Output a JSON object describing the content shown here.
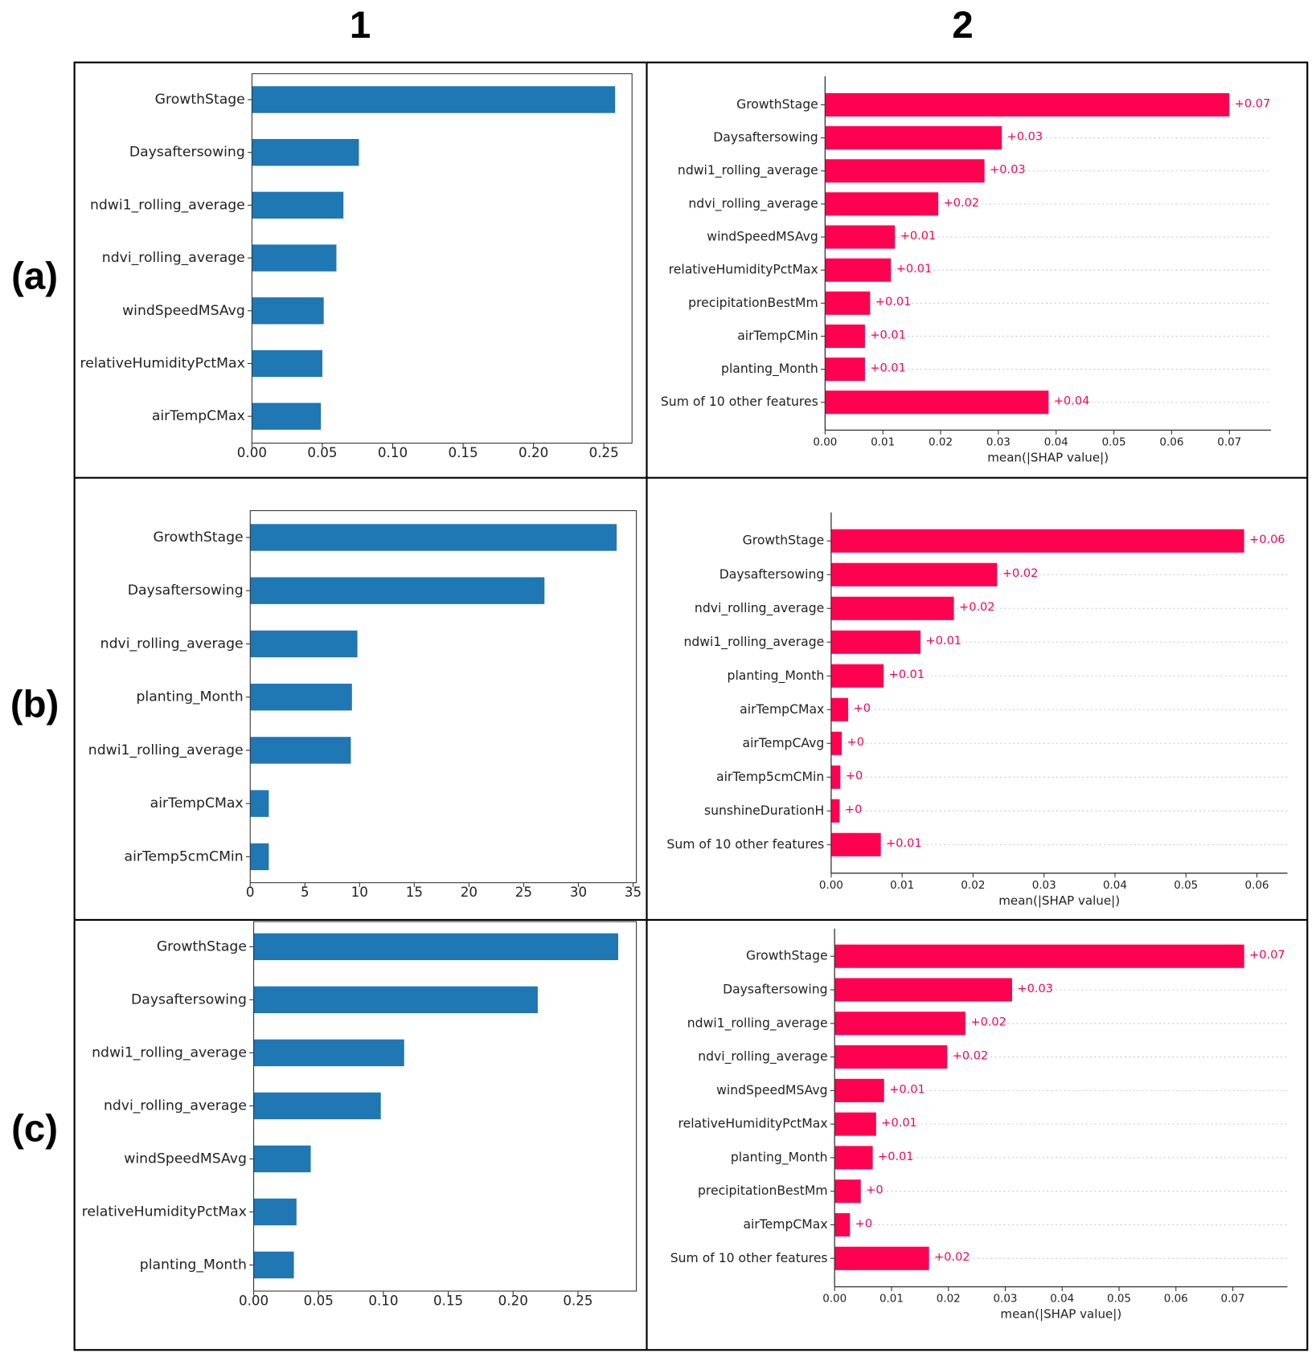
{
  "column_labels": [
    "1",
    "2"
  ],
  "row_labels": [
    "(a)",
    "(b)",
    "(c)"
  ],
  "chart_data": [
    {
      "type": "bar",
      "color": "#1f77b4",
      "grid": false,
      "categories": [
        "GrowthStage",
        "Daysaftersowing",
        "ndwi1_rolling_average",
        "ndvi_rolling_average",
        "windSpeedMSAvg",
        "relativeHumidityPctMax",
        "airTempCMax"
      ],
      "values": [
        0.258,
        0.076,
        0.065,
        0.06,
        0.051,
        0.05,
        0.049
      ],
      "xlim": [
        0,
        0.27
      ],
      "xticks": [
        {
          "value": 0,
          "label": "0.00"
        },
        0.05,
        {
          "value": 0.1,
          "label": "0.10"
        },
        0.15,
        {
          "value": 0.2,
          "label": "0.20"
        },
        0.25
      ]
    },
    {
      "type": "bar",
      "color": "#ff0051",
      "grid": true,
      "xlabel": "mean(|SHAP value|)",
      "categories": [
        "GrowthStage",
        "Daysaftersowing",
        "ndwi1_rolling_average",
        "ndvi_rolling_average",
        "windSpeedMSAvg",
        "relativeHumidityPctMax",
        "precipitationBestMm",
        "airTempCMin",
        "planting_Month",
        "Sum of 10 other features"
      ],
      "values": [
        0.07,
        0.0306,
        0.0276,
        0.0196,
        0.0121,
        0.0114,
        0.0078,
        0.0069,
        0.0069,
        0.0387
      ],
      "value_labels": [
        "+0.07",
        "+0.03",
        "+0.03",
        "+0.02",
        "+0.01",
        "+0.01",
        "+0.01",
        "+0.01",
        "+0.01",
        "+0.04"
      ],
      "xlim": [
        0,
        0.0772
      ],
      "xticks": [
        {
          "value": 0,
          "label": "0.00"
        },
        0.01,
        0.02,
        0.03,
        0.04,
        0.05,
        0.06,
        0.07
      ]
    },
    {
      "type": "bar",
      "color": "#1f77b4",
      "grid": false,
      "categories": [
        "GrowthStage",
        "Daysaftersowing",
        "ndvi_rolling_average",
        "planting_Month",
        "ndwi1_rolling_average",
        "airTempCMax",
        "airTemp5cmCMin"
      ],
      "values": [
        33.5,
        26.9,
        9.8,
        9.3,
        9.2,
        1.7,
        1.7
      ],
      "xlim": [
        0,
        35.3
      ],
      "xticks": [
        0,
        5,
        10,
        15,
        20,
        25,
        30,
        35
      ]
    },
    {
      "type": "bar",
      "color": "#ff0051",
      "grid": true,
      "xlabel": "mean(|SHAP value|)",
      "categories": [
        "GrowthStage",
        "Daysaftersowing",
        "ndvi_rolling_average",
        "ndwi1_rolling_average",
        "planting_Month",
        "airTempCMax",
        "airTempCAvg",
        "airTemp5cmCMin",
        "sunshineDurationH",
        "Sum of 10 other features"
      ],
      "values": [
        0.0582,
        0.0234,
        0.0173,
        0.0126,
        0.0074,
        0.0024,
        0.0015,
        0.0013,
        0.0012,
        0.007
      ],
      "value_labels": [
        "+0.06",
        "+0.02",
        "+0.02",
        "+0.01",
        "+0.01",
        "+0",
        "+0",
        "+0",
        "+0",
        "+0.01"
      ],
      "xlim": [
        0,
        0.0643
      ],
      "xticks": [
        {
          "value": 0,
          "label": "0.00"
        },
        0.01,
        0.02,
        0.03,
        0.04,
        0.05,
        0.06
      ]
    },
    {
      "type": "bar",
      "color": "#1f77b4",
      "grid": false,
      "categories": [
        "GrowthStage",
        "Daysaftersowing",
        "ndwi1_rolling_average",
        "ndvi_rolling_average",
        "windSpeedMSAvg",
        "relativeHumidityPctMax",
        "planting_Month"
      ],
      "values": [
        0.281,
        0.219,
        0.116,
        0.098,
        0.044,
        0.033,
        0.031
      ],
      "xlim": [
        0,
        0.295
      ],
      "xticks": [
        {
          "value": 0,
          "label": "0.00"
        },
        0.05,
        {
          "value": 0.1,
          "label": "0.10"
        },
        0.15,
        {
          "value": 0.2,
          "label": "0.20"
        },
        0.25
      ]
    },
    {
      "type": "bar",
      "color": "#ff0051",
      "grid": true,
      "xlabel": "mean(|SHAP value|)",
      "categories": [
        "GrowthStage",
        "Daysaftersowing",
        "ndwi1_rolling_average",
        "ndvi_rolling_average",
        "windSpeedMSAvg",
        "relativeHumidityPctMax",
        "planting_Month",
        "precipitationBestMm",
        "airTempCMax",
        "Sum of 10 other features"
      ],
      "values": [
        0.072,
        0.0312,
        0.023,
        0.0198,
        0.0087,
        0.0073,
        0.0067,
        0.0046,
        0.0027,
        0.0166
      ],
      "value_labels": [
        "+0.07",
        "+0.03",
        "+0.02",
        "+0.02",
        "+0.01",
        "+0.01",
        "+0.01",
        "+0",
        "+0",
        "+0.02"
      ],
      "xlim": [
        0,
        0.0796
      ],
      "xticks": [
        {
          "value": 0,
          "label": "0.00"
        },
        0.01,
        0.02,
        0.03,
        0.04,
        0.05,
        0.06,
        0.07
      ]
    }
  ]
}
